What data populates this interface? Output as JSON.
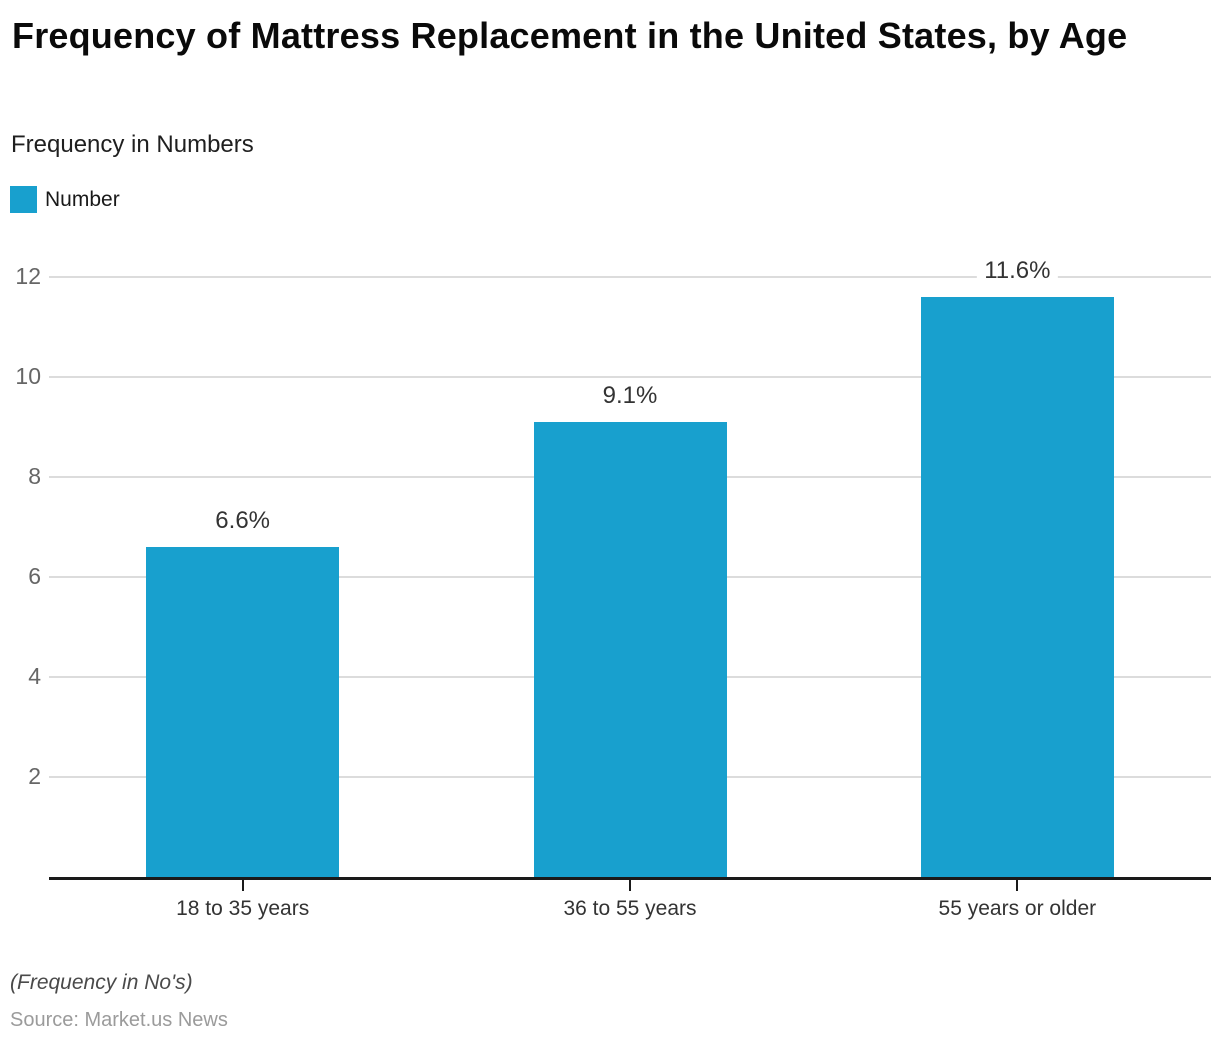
{
  "header": {
    "title": "Frequency of Mattress Replacement in the United States, by Age",
    "subtitle": "Frequency in Numbers"
  },
  "legend": {
    "label": "Number",
    "swatch_color": "#18a0ce"
  },
  "chart_data": {
    "type": "bar",
    "title": "Frequency of Mattress Replacement in the United States, by Age",
    "subtitle": "Frequency in Numbers",
    "categories": [
      "18 to 35 years",
      "36 to 55 years",
      "55 years or older"
    ],
    "series": [
      {
        "name": "Number",
        "values": [
          6.6,
          9.1,
          11.6
        ]
      }
    ],
    "value_labels": [
      "6.6%",
      "9.1%",
      "11.6%"
    ],
    "xlabel": "",
    "ylabel": "",
    "ylim": [
      0,
      12
    ],
    "yticks": [
      2,
      4,
      6,
      8,
      10,
      12
    ],
    "grid": true,
    "legend_position": "top-left",
    "bar_color": "#18a0ce"
  },
  "footer": {
    "note": "(Frequency in No's)",
    "source": "Source: Market.us News"
  }
}
